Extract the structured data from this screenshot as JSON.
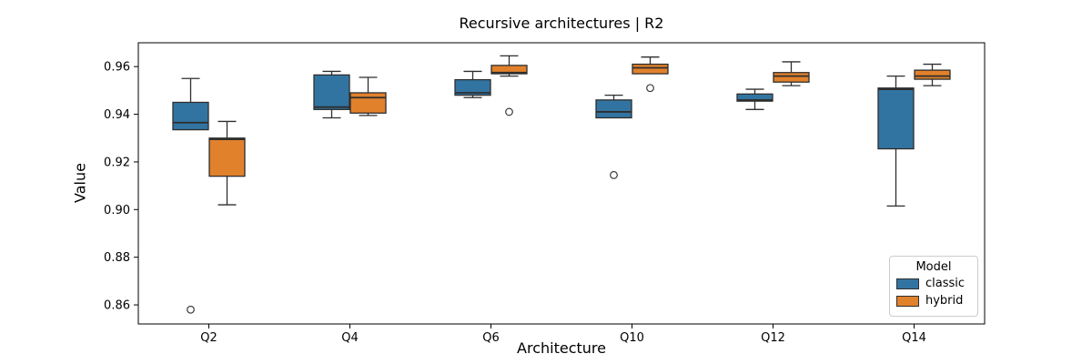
{
  "chart_data": {
    "type": "box",
    "title": "Recursive architectures | R2",
    "xlabel": "Architecture",
    "ylabel": "Value",
    "categories": [
      "Q2",
      "Q4",
      "Q6",
      "Q10",
      "Q12",
      "Q14"
    ],
    "yticks": [
      "0.86",
      "0.88",
      "0.90",
      "0.92",
      "0.94",
      "0.96"
    ],
    "ylim": [
      0.852,
      0.97
    ],
    "grid": false,
    "legend": {
      "title": "Model",
      "position": "lower right"
    },
    "edge_color": "#2e2e2e",
    "axis_color": "#000000",
    "outlier_color": "#3a3a3a",
    "series": [
      {
        "name": "classic",
        "color": "#3274a1",
        "boxes": [
          {
            "category": "Q2",
            "whislo": 0.9335,
            "q1": 0.9335,
            "med": 0.9365,
            "q3": 0.945,
            "whishi": 0.955,
            "outliers": [
              0.858
            ]
          },
          {
            "category": "Q4",
            "whislo": 0.9385,
            "q1": 0.942,
            "med": 0.943,
            "q3": 0.9565,
            "whishi": 0.958,
            "outliers": []
          },
          {
            "category": "Q6",
            "whislo": 0.947,
            "q1": 0.948,
            "med": 0.949,
            "q3": 0.9545,
            "whishi": 0.958,
            "outliers": []
          },
          {
            "category": "Q10",
            "whislo": 0.9385,
            "q1": 0.9385,
            "med": 0.941,
            "q3": 0.946,
            "whishi": 0.948,
            "outliers": [
              0.9145
            ]
          },
          {
            "category": "Q12",
            "whislo": 0.942,
            "q1": 0.9455,
            "med": 0.946,
            "q3": 0.9485,
            "whishi": 0.9505,
            "outliers": []
          },
          {
            "category": "Q14",
            "whislo": 0.9015,
            "q1": 0.9255,
            "med": 0.9505,
            "q3": 0.951,
            "whishi": 0.956,
            "outliers": []
          }
        ]
      },
      {
        "name": "hybrid",
        "color": "#e1812c",
        "boxes": [
          {
            "category": "Q2",
            "whislo": 0.902,
            "q1": 0.914,
            "med": 0.9295,
            "q3": 0.93,
            "whishi": 0.937,
            "outliers": []
          },
          {
            "category": "Q4",
            "whislo": 0.9395,
            "q1": 0.9405,
            "med": 0.947,
            "q3": 0.949,
            "whishi": 0.9555,
            "outliers": []
          },
          {
            "category": "Q6",
            "whislo": 0.956,
            "q1": 0.957,
            "med": 0.9575,
            "q3": 0.9605,
            "whishi": 0.9645,
            "outliers": [
              0.941
            ]
          },
          {
            "category": "Q10",
            "whislo": 0.957,
            "q1": 0.957,
            "med": 0.9595,
            "q3": 0.961,
            "whishi": 0.964,
            "outliers": [
              0.951
            ]
          },
          {
            "category": "Q12",
            "whislo": 0.952,
            "q1": 0.9535,
            "med": 0.956,
            "q3": 0.9575,
            "whishi": 0.962,
            "outliers": []
          },
          {
            "category": "Q14",
            "whislo": 0.952,
            "q1": 0.9547,
            "med": 0.956,
            "q3": 0.9585,
            "whishi": 0.961,
            "outliers": []
          }
        ]
      }
    ]
  }
}
